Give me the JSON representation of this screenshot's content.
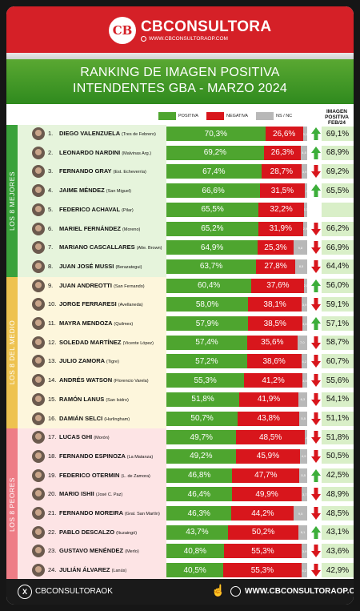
{
  "header": {
    "logo_mark": "CB",
    "brand_name": "CBCONSULTORA",
    "brand_url": "WWW.CBCONSULTORAOP.COM"
  },
  "title_line1": "RANKING DE IMAGEN POSITIVA",
  "title_line2": "INTENDENTES GBA - MARZO 2024",
  "legend": {
    "positive": "POSITIVA",
    "negative": "NEGATIVA",
    "nsnc": "NS / NC",
    "feb_header": "IMAGEN POSITIVA FEB/24"
  },
  "colors": {
    "positive": "#4ea52f",
    "negative": "#d8161c",
    "nsnc": "#b8b8b8",
    "group_best": "#3aa13a",
    "group_mid": "#eec24f",
    "group_worst": "#ee7d86",
    "arrow_up": "#3cae3a",
    "arrow_down": "#d8161c"
  },
  "groups": [
    {
      "label": "LOS 8 MEJORES",
      "start": 0,
      "end": 7,
      "color": "#3aa13a",
      "bg": "#e6f4dc"
    },
    {
      "label": "LOS 8 DEL MEDIO",
      "start": 8,
      "end": 15,
      "color": "#eec24f",
      "bg": "#fdf6dc"
    },
    {
      "label": "LOS 8 PEORES",
      "start": 16,
      "end": 23,
      "color": "#ee7d86",
      "bg": "#fde4e5"
    }
  ],
  "chart_data": {
    "type": "bar",
    "stacked": true,
    "series": [
      {
        "name": "POSITIVA",
        "values": [
          70.3,
          69.2,
          67.4,
          66.6,
          65.5,
          65.2,
          64.9,
          63.7,
          60.4,
          58.0,
          57.9,
          57.4,
          57.2,
          55.3,
          51.8,
          50.7,
          49.7,
          49.2,
          46.8,
          46.4,
          46.3,
          43.7,
          40.8,
          40.5
        ]
      },
      {
        "name": "NEGATIVA",
        "values": [
          26.6,
          26.3,
          28.7,
          31.5,
          32.2,
          31.9,
          25.3,
          27.8,
          37.6,
          38.1,
          38.5,
          35.6,
          38.6,
          41.2,
          41.9,
          43.8,
          48.5,
          45.9,
          47.7,
          49.9,
          44.2,
          50.2,
          55.3,
          55.3
        ]
      },
      {
        "name": "NS / NC",
        "values": [
          3.1,
          4.5,
          3.9,
          1.9,
          2.3,
          2.9,
          9.8,
          8.5,
          2.0,
          3.9,
          3.6,
          7.0,
          4.2,
          3.5,
          6.3,
          5.5,
          1.8,
          4.9,
          5.5,
          3.7,
          9.5,
          6.1,
          3.9,
          4.2
        ]
      }
    ],
    "rows": [
      {
        "rank": "1.",
        "name": "DIEGO VALENZUELA",
        "district": "(Tres de Febrero)",
        "pos": "70,3%",
        "neg": "26,6%",
        "ns": "3,1",
        "trend": "up",
        "feb": "69,1%"
      },
      {
        "rank": "2.",
        "name": "LEONARDO NARDINI",
        "district": "(Malvinas Arg.)",
        "pos": "69,2%",
        "neg": "26,3%",
        "ns": "4,5",
        "trend": "up",
        "feb": "68,9%"
      },
      {
        "rank": "3.",
        "name": "FERNANDO GRAY",
        "district": "(Est. Echeverría)",
        "pos": "67,4%",
        "neg": "28,7%",
        "ns": "3,9",
        "trend": "down",
        "feb": "69,2%"
      },
      {
        "rank": "4.",
        "name": "JAIME MÉNDEZ",
        "district": "(San Miguel)",
        "pos": "66,6%",
        "neg": "31,5%",
        "ns": "1,9",
        "trend": "up",
        "feb": "65,5%"
      },
      {
        "rank": "5.",
        "name": "FEDERICO ACHAVAL",
        "district": "(Pilar)",
        "pos": "65,5%",
        "neg": "32,2%",
        "ns": "2,3",
        "trend": "none",
        "feb": ""
      },
      {
        "rank": "6.",
        "name": "MARIEL FERNÁNDEZ",
        "district": "(Moreno)",
        "pos": "65,2%",
        "neg": "31,9%",
        "ns": "2,9",
        "trend": "down",
        "feb": "66,2%"
      },
      {
        "rank": "7.",
        "name": "MARIANO CASCALLARES",
        "district": "(Alte. Brown)",
        "pos": "64,9%",
        "neg": "25,3%",
        "ns": "9,8",
        "trend": "down",
        "feb": "66,9%"
      },
      {
        "rank": "8.",
        "name": "JUAN JOSÉ MUSSI",
        "district": "(Berazategui)",
        "pos": "63,7%",
        "neg": "27,8%",
        "ns": "8,5",
        "trend": "down",
        "feb": "64,4%"
      },
      {
        "rank": "9.",
        "name": "JUAN ANDREOTTI",
        "district": "(San Fernando)",
        "pos": "60,4%",
        "neg": "37,6%",
        "ns": "2,0",
        "trend": "up",
        "feb": "56,0%"
      },
      {
        "rank": "10.",
        "name": "JORGE FERRARESI",
        "district": "(Avellaneda)",
        "pos": "58,0%",
        "neg": "38,1%",
        "ns": "3,9",
        "trend": "down",
        "feb": "59,1%"
      },
      {
        "rank": "11.",
        "name": "MAYRA MENDOZA",
        "district": "(Quilmes)",
        "pos": "57,9%",
        "neg": "38,5%",
        "ns": "3,6",
        "trend": "up",
        "feb": "57,1%"
      },
      {
        "rank": "12.",
        "name": "SOLEDAD MARTÍNEZ",
        "district": "(Vicente López)",
        "pos": "57,4%",
        "neg": "35,6%",
        "ns": "7,0",
        "trend": "down",
        "feb": "58,7%"
      },
      {
        "rank": "13.",
        "name": "JULIO ZAMORA",
        "district": "(Tigre)",
        "pos": "57,2%",
        "neg": "38,6%",
        "ns": "4,2",
        "trend": "down",
        "feb": "60,7%"
      },
      {
        "rank": "14.",
        "name": "ANDRÉS WATSON",
        "district": "(Florencio Varela)",
        "pos": "55,3%",
        "neg": "41,2%",
        "ns": "3,5",
        "trend": "down",
        "feb": "55,6%"
      },
      {
        "rank": "15.",
        "name": "RAMÓN LANUS",
        "district": "(San Isidro)",
        "pos": "51,8%",
        "neg": "41,9%",
        "ns": "6,3",
        "trend": "down",
        "feb": "54,1%"
      },
      {
        "rank": "16.",
        "name": "DAMIÁN SELCI",
        "district": "(Hurlingham)",
        "pos": "50,7%",
        "neg": "43,8%",
        "ns": "5,5",
        "trend": "down",
        "feb": "51,1%"
      },
      {
        "rank": "17.",
        "name": "LUCAS GHI",
        "district": "(Morón)",
        "pos": "49,7%",
        "neg": "48,5%",
        "ns": "1,8",
        "trend": "down",
        "feb": "51,8%"
      },
      {
        "rank": "18.",
        "name": "FERNANDO ESPINOZA",
        "district": "(La Matanza)",
        "pos": "49,2%",
        "neg": "45,9%",
        "ns": "4,9",
        "trend": "down",
        "feb": "50,5%"
      },
      {
        "rank": "19.",
        "name": "FEDERICO OTERMIN",
        "district": "(L. de Zamora)",
        "pos": "46,8%",
        "neg": "47,7%",
        "ns": "5,5",
        "trend": "up",
        "feb": "42,5%"
      },
      {
        "rank": "20.",
        "name": "MARIO ISHII",
        "district": "(José C. Paz)",
        "pos": "46,4%",
        "neg": "49,9%",
        "ns": "3,7",
        "trend": "down",
        "feb": "48,9%"
      },
      {
        "rank": "21.",
        "name": "FERNANDO MOREIRA",
        "district": "(Gral. San Martín)",
        "pos": "46,3%",
        "neg": "44,2%",
        "ns": "9,5",
        "trend": "down",
        "feb": "48,5%"
      },
      {
        "rank": "22.",
        "name": "PABLO DESCALZO",
        "district": "(Ituzaingó)",
        "pos": "43,7%",
        "neg": "50,2%",
        "ns": "6,1",
        "trend": "up",
        "feb": "43,1%"
      },
      {
        "rank": "23.",
        "name": "GUSTAVO MENÉNDEZ",
        "district": "(Merlo)",
        "pos": "40,8%",
        "neg": "55,3%",
        "ns": "3,9",
        "trend": "down",
        "feb": "43,6%"
      },
      {
        "rank": "24.",
        "name": "JULIÁN ÁLVAREZ",
        "district": "(Lanús)",
        "pos": "40,5%",
        "neg": "55,3%",
        "ns": "4,2",
        "trend": "down",
        "feb": "42,9%"
      }
    ]
  },
  "footer": {
    "social_handle": "CBCONSULTORAOK",
    "website": "WWW.CBCONSULTORAOP.COM"
  }
}
